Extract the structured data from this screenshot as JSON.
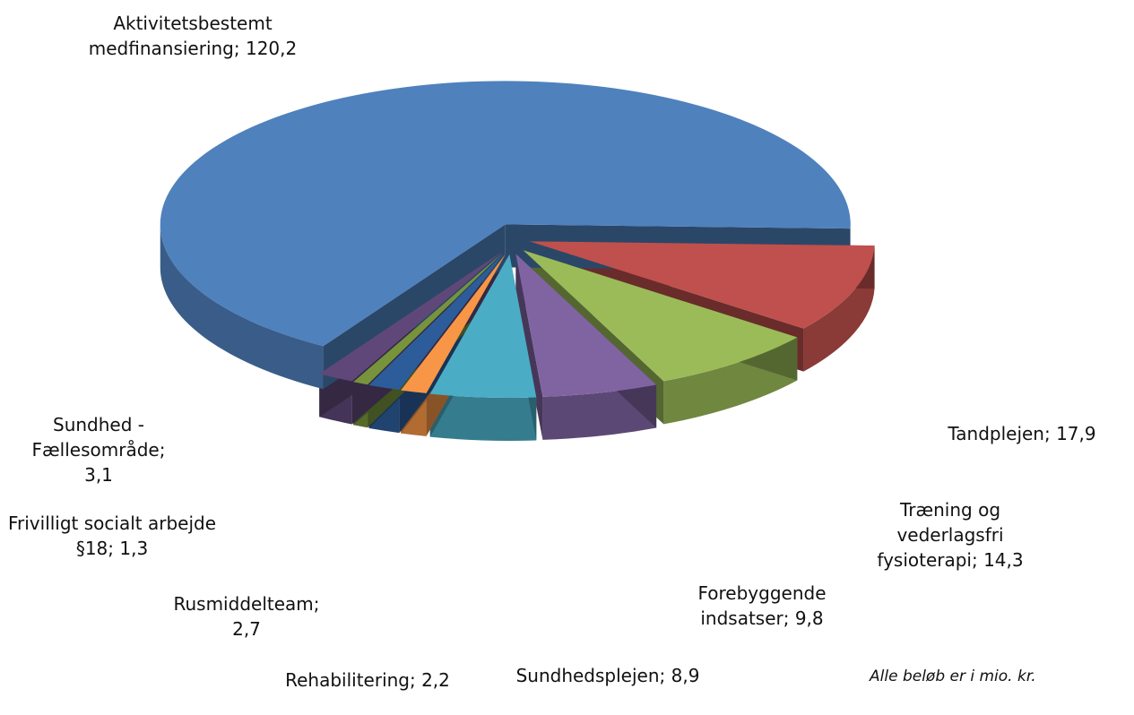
{
  "chart_data": {
    "type": "pie",
    "value_labels": [
      "Tandplejen; 17,9",
      "Træning og vederlagsfri fysioterapi; 14,3",
      "Forebyggende indsatser; 9,8",
      "Sundhedsplejen; 8,9",
      "Rehabilitering; 2,2",
      "Rusmiddelteam; 2,7",
      "Frivilligt socialt arbejde §18; 1,3",
      "Sundhed - Fællesområde; 3,1",
      "Aktivitetsbestemt medfinansiering; 120,2"
    ],
    "values": [
      17.9,
      14.3,
      9.8,
      8.9,
      2.2,
      2.7,
      1.3,
      3.1,
      120.2
    ],
    "colors": [
      "#c0504d",
      "#9bbb59",
      "#8064a2",
      "#4bacc6",
      "#f79646",
      "#2c5d9a",
      "#77933c",
      "#5f4879",
      "#4f81bd"
    ],
    "note": "Alle beløb er i mio. kr."
  }
}
